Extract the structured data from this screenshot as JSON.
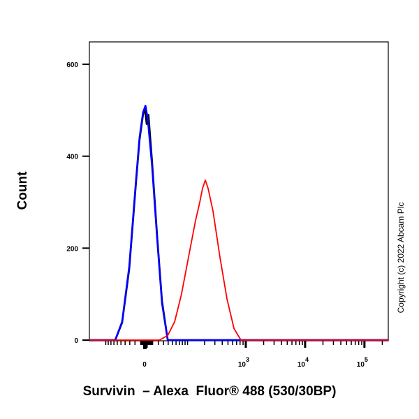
{
  "chart_data": {
    "type": "line",
    "title": "",
    "xlabel": "Survivin  – Alexa  Fluor® 488 (530/30BP)",
    "ylabel": "Count",
    "x_scale": "biexponential",
    "xlim": [
      -200,
      200000
    ],
    "ylim": [
      0,
      650
    ],
    "y_ticks": [
      0,
      200,
      400,
      600
    ],
    "x_ticks": [
      {
        "value": 0,
        "label": "0"
      },
      {
        "value": 1000,
        "label": "10",
        "sup": "3"
      },
      {
        "value": 10000,
        "label": "10",
        "sup": "4"
      },
      {
        "value": 100000,
        "label": "10",
        "sup": "5"
      }
    ],
    "grid": false,
    "legend": "none",
    "series": [
      {
        "color": "#0000ff",
        "points": [
          [
            -66,
            0
          ],
          [
            -47,
            40
          ],
          [
            -31,
            160
          ],
          [
            -18,
            350
          ],
          [
            -12,
            440
          ],
          [
            -6,
            495
          ],
          [
            -2,
            510
          ],
          [
            2,
            480
          ],
          [
            9,
            380
          ],
          [
            18,
            220
          ],
          [
            27,
            80
          ],
          [
            39,
            0
          ]
        ]
      },
      {
        "color": "#000000",
        "points": [
          [
            -66,
            0
          ],
          [
            -47,
            38
          ],
          [
            -31,
            155
          ],
          [
            -18,
            345
          ],
          [
            -12,
            435
          ],
          [
            -6,
            490
          ],
          [
            -3,
            505
          ],
          [
            0,
            470
          ],
          [
            3,
            490
          ],
          [
            9,
            390
          ],
          [
            18,
            225
          ],
          [
            27,
            85
          ],
          [
            39,
            0
          ]
        ]
      },
      {
        "color": "#ff0000",
        "points": [
          [
            22,
            0
          ],
          [
            39,
            10
          ],
          [
            56,
            40
          ],
          [
            77,
            100
          ],
          [
            104,
            180
          ],
          [
            139,
            260
          ],
          [
            165,
            300
          ],
          [
            184,
            330
          ],
          [
            206,
            348
          ],
          [
            230,
            330
          ],
          [
            279,
            280
          ],
          [
            366,
            180
          ],
          [
            481,
            90
          ],
          [
            632,
            25
          ],
          [
            828,
            0
          ]
        ]
      }
    ]
  },
  "copyright": "Copyright (c) 2022 Abcam Plc"
}
